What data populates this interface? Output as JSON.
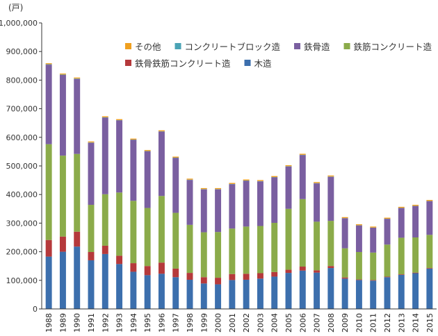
{
  "chart_data": {
    "type": "bar",
    "stacked": true,
    "y_unit_label": "(戸)",
    "ylim": [
      0,
      1000000
    ],
    "y_ticks": [
      0,
      100000,
      200000,
      300000,
      400000,
      500000,
      600000,
      700000,
      800000,
      900000,
      1000000
    ],
    "y_tick_labels": [
      "0",
      "100,000",
      "200,000",
      "300,000",
      "400,000",
      "500,000",
      "600,000",
      "700,000",
      "800,000",
      "900,000",
      "1,000,000"
    ],
    "grid": false,
    "legend_position": "top-right",
    "categories": [
      "1988",
      "1989",
      "1990",
      "1991",
      "1992",
      "1993",
      "1994",
      "1995",
      "1996",
      "1997",
      "1998",
      "1999",
      "2000",
      "2001",
      "2002",
      "2003",
      "2004",
      "2005",
      "2006",
      "2007",
      "2008",
      "2009",
      "2010",
      "2011",
      "2012",
      "2013",
      "2014",
      "2015"
    ],
    "series": [
      {
        "name": "木造",
        "color": "#3c6fad",
        "values": [
          183000,
          200000,
          218000,
          170000,
          192000,
          157000,
          130000,
          118000,
          123000,
          111000,
          102000,
          89000,
          86000,
          101000,
          102000,
          106000,
          113000,
          126000,
          134000,
          127000,
          143000,
          106000,
          101000,
          99000,
          111000,
          119000,
          125000,
          141000
        ]
      },
      {
        "name": "鉄骨鉄筋コンクリート造",
        "color": "#b5393b",
        "values": [
          58000,
          53000,
          52000,
          29000,
          29000,
          29000,
          30000,
          32000,
          39000,
          30000,
          24000,
          22000,
          23000,
          21000,
          21000,
          19000,
          16000,
          11000,
          14000,
          8000,
          7000,
          4000,
          2000,
          2000,
          2000,
          2000,
          2000,
          2000
        ]
      },
      {
        "name": "鉄筋コンクリート造",
        "color": "#8bab4a",
        "values": [
          335000,
          283000,
          272000,
          165000,
          180000,
          221000,
          218000,
          203000,
          233000,
          195000,
          168000,
          157000,
          160000,
          159000,
          165000,
          165000,
          172000,
          213000,
          236000,
          170000,
          158000,
          102000,
          96000,
          96000,
          112000,
          128000,
          123000,
          116000
        ]
      },
      {
        "name": "鉄骨造",
        "color": "#7a5fa0",
        "values": [
          278000,
          282000,
          262000,
          217000,
          268000,
          252000,
          213000,
          198000,
          225000,
          192000,
          157000,
          150000,
          149000,
          155000,
          160000,
          156000,
          159000,
          148000,
          154000,
          134000,
          154000,
          105000,
          93000,
          87000,
          90000,
          104000,
          110000,
          118000
        ]
      },
      {
        "name": "コンクリートブロック造",
        "color": "#4aa3b5",
        "values": [
          1500,
          1500,
          1500,
          1000,
          1000,
          1000,
          1000,
          1000,
          1000,
          1000,
          1000,
          1000,
          1000,
          1000,
          1000,
          1000,
          1000,
          1000,
          1000,
          1000,
          1000,
          500,
          500,
          500,
          500,
          500,
          500,
          500
        ]
      },
      {
        "name": "その他",
        "color": "#f0a020",
        "values": [
          3500,
          3500,
          3500,
          3500,
          3500,
          3500,
          3500,
          3500,
          3500,
          3500,
          3500,
          3500,
          3500,
          3500,
          3500,
          3500,
          3500,
          3500,
          3500,
          3500,
          3500,
          3500,
          3500,
          3500,
          3500,
          3500,
          3500,
          3500
        ]
      }
    ],
    "legend_rows": [
      [
        "その他",
        "コンクリートブロック造",
        "鉄骨造",
        "鉄筋コンクリート造"
      ],
      [
        "鉄骨鉄筋コンクリート造",
        "木造"
      ]
    ]
  }
}
